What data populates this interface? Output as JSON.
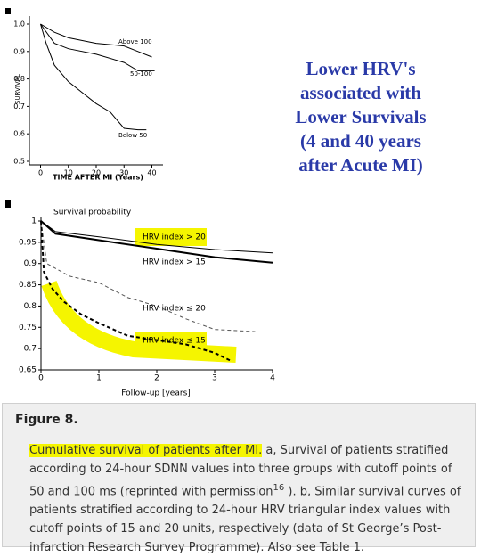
{
  "chart_data": [
    {
      "type": "line",
      "ylabel": "SURVIVAL",
      "xlabel": "TIME AFTER MI (Years)",
      "xlim": [
        -4,
        44
      ],
      "ylim": [
        0.5,
        1.0
      ],
      "xticks": [
        0,
        10,
        20,
        30,
        40
      ],
      "yticks": [
        0.5,
        0.6,
        0.7,
        0.8,
        0.9,
        {
          "value": 1,
          "label": "1.0"
        }
      ],
      "series": [
        {
          "name": "Above 100",
          "color": "#000000",
          "line_style": "solid",
          "line_weight": "thin",
          "x": [
            0,
            5,
            10,
            20,
            30,
            35,
            40
          ],
          "values": [
            1.0,
            0.97,
            0.95,
            0.93,
            0.92,
            0.9,
            0.88
          ]
        },
        {
          "name": "50-100",
          "color": "#000000",
          "line_style": "solid",
          "line_weight": "thin",
          "x": [
            0,
            5,
            10,
            20,
            30,
            35,
            41
          ],
          "values": [
            1.0,
            0.93,
            0.91,
            0.89,
            0.86,
            0.83,
            0.83
          ]
        },
        {
          "name": "Below 50",
          "color": "#000000",
          "line_style": "solid",
          "line_weight": "thin",
          "x": [
            0,
            2,
            5,
            10,
            15,
            20,
            25,
            30,
            35,
            38
          ],
          "values": [
            1.0,
            0.93,
            0.85,
            0.79,
            0.75,
            0.71,
            0.68,
            0.62,
            0.615,
            0.615
          ]
        }
      ]
    },
    {
      "type": "line",
      "title": "Survival probability",
      "xlabel": "Follow-up [years]",
      "xlim": [
        0,
        4
      ],
      "ylim": [
        0.65,
        1
      ],
      "xticks": [
        0,
        1,
        2,
        3,
        4
      ],
      "yticks": [
        0.65,
        0.7,
        0.75,
        0.8,
        0.85,
        0.9,
        0.95,
        1
      ],
      "series": [
        {
          "name": "HRV index > 20",
          "color": "#000000",
          "line_style": "solid",
          "line_weight": "thin",
          "x": [
            0,
            0.25,
            1,
            2,
            3,
            4
          ],
          "values": [
            1,
            0.975,
            0.963,
            0.945,
            0.933,
            0.925
          ]
        },
        {
          "name": "HRV index > 15",
          "color": "#000000",
          "line_style": "solid",
          "line_weight": "thick",
          "x": [
            0,
            0.25,
            1,
            2,
            3,
            4
          ],
          "values": [
            1,
            0.97,
            0.955,
            0.935,
            0.915,
            0.902
          ]
        },
        {
          "name": "HRV index ≤ 20",
          "color": "#555555",
          "line_style": "dashed",
          "line_weight": "thin",
          "x": [
            0,
            0.1,
            0.3,
            0.5,
            1,
            1.5,
            2,
            2.5,
            3,
            3.7
          ],
          "values": [
            1,
            0.9,
            0.885,
            0.87,
            0.855,
            0.82,
            0.8,
            0.77,
            0.745,
            0.74
          ]
        },
        {
          "name": "HRV index ≤ 15",
          "color": "#000000",
          "line_style": "dashed",
          "line_weight": "thick",
          "x": [
            0,
            0.05,
            0.2,
            0.4,
            0.7,
            1,
            1.5,
            2,
            2.5,
            3,
            3.3
          ],
          "values": [
            1,
            0.88,
            0.84,
            0.81,
            0.78,
            0.76,
            0.73,
            0.72,
            0.71,
            0.69,
            0.67
          ]
        }
      ]
    }
  ],
  "slide_text": {
    "lines": [
      "Lower HRV's",
      "associated with",
      "Lower Survivals",
      "(4 and 40 years",
      "after Acute MI)"
    ]
  },
  "caption": {
    "title": "Figure 8.",
    "highlighted": "Cumulative survival of patients after MI.",
    "text_1": " a, Survival of patients stratified according to 24-hour SDNN values into three groups with cutoff points of 50 and 100 ms (reprinted with permission",
    "superscript": "16",
    "text_2": " ). b, Similar survival curves of patients stratified according to 24-hour HRV triangular index values with cutoff points of 15 and 20 units, respectively (data of St George’s Post-infarction Research Survey Programme). Also see Table 1."
  }
}
